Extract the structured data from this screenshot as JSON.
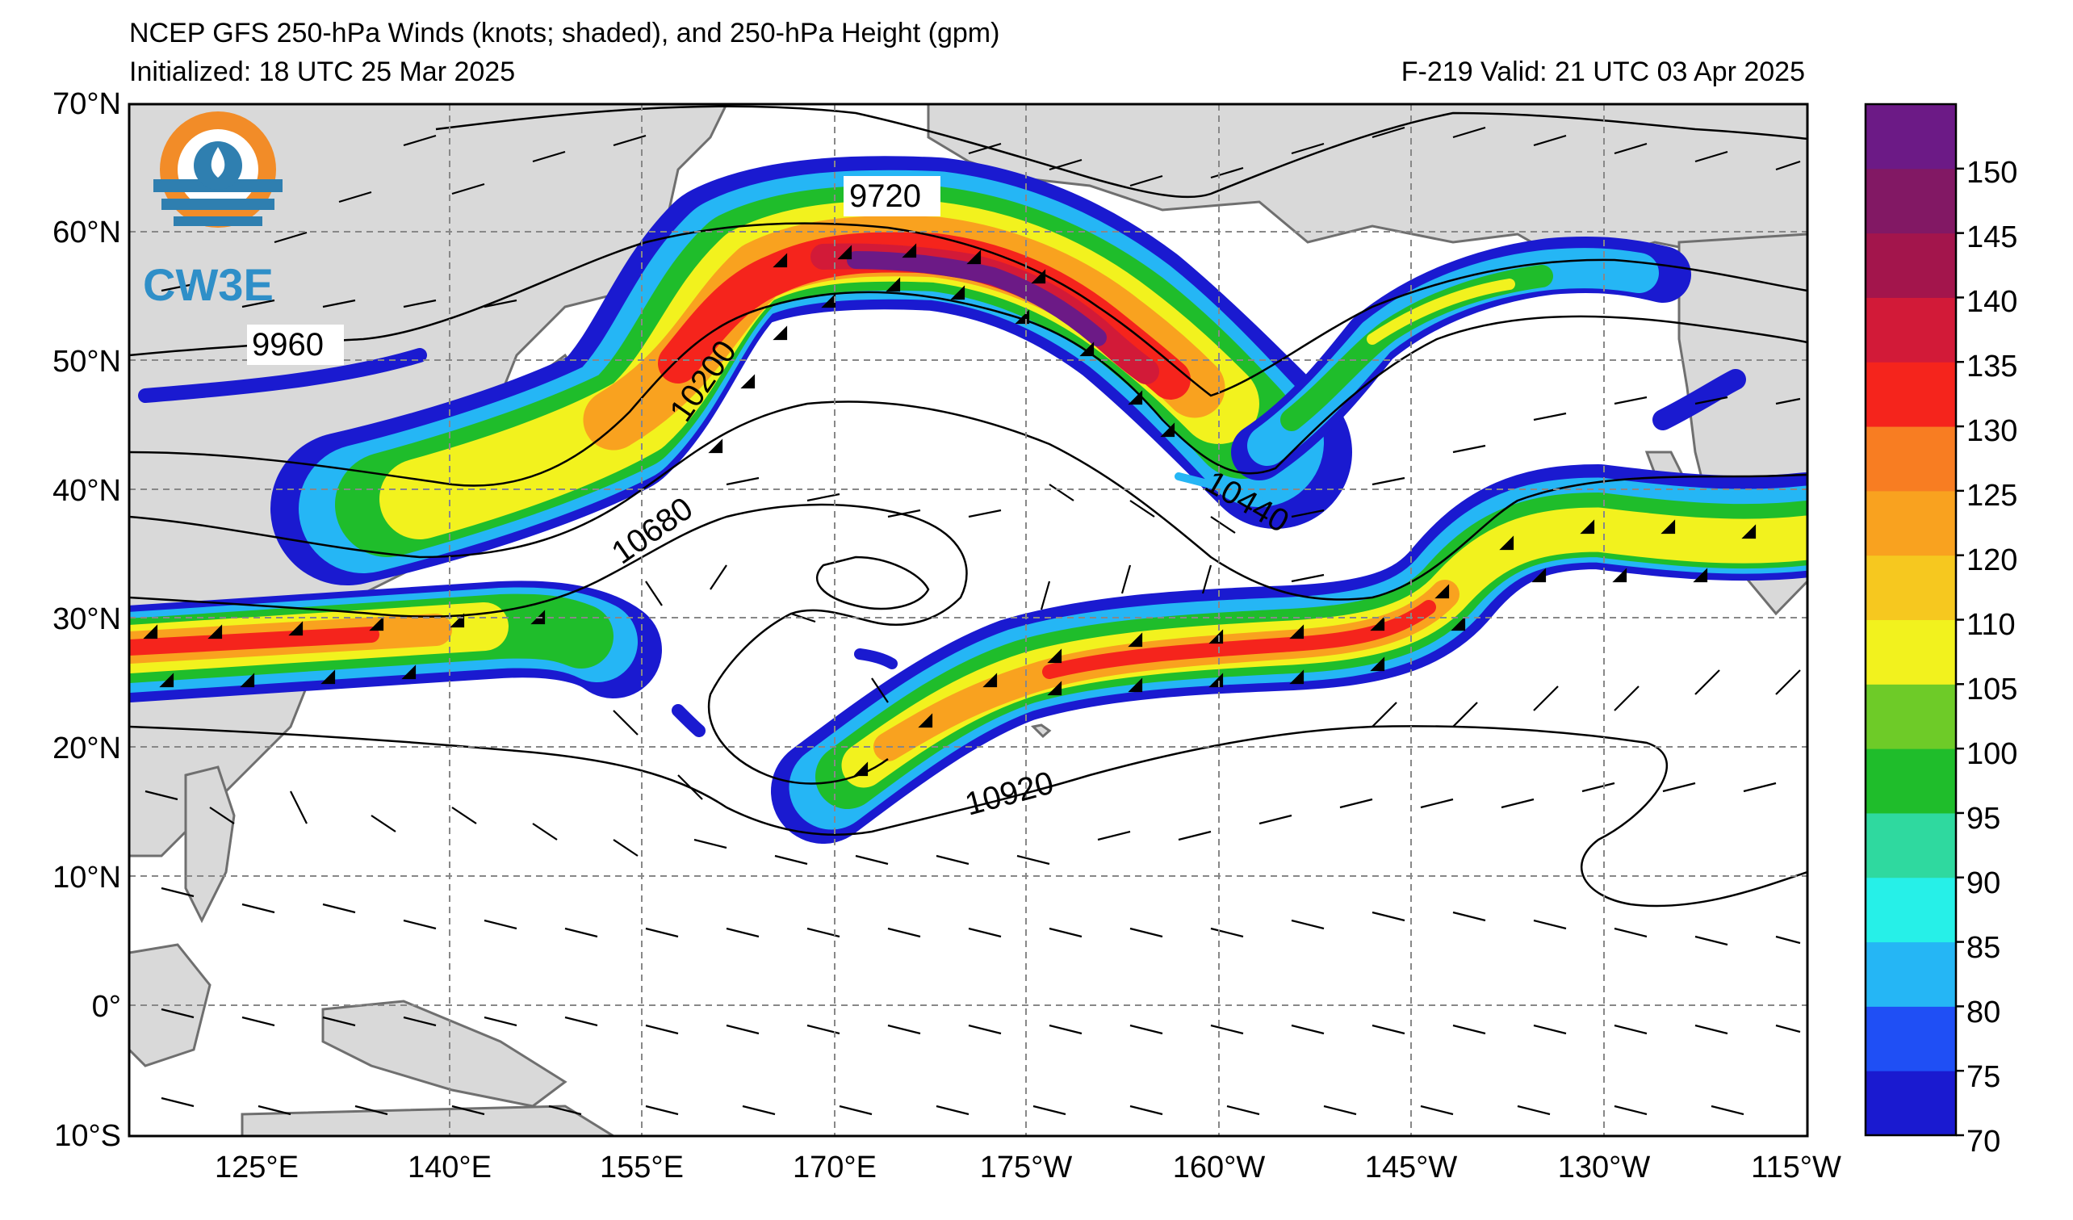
{
  "header": {
    "title": "NCEP GFS 250-hPa Winds (knots; shaded), and 250-hPa Height (gpm)",
    "initialized": "Initialized: 18 UTC 25 Mar 2025",
    "valid": "F-219  Valid: 21 UTC 03 Apr 2025"
  },
  "logo": {
    "text": "CW3E"
  },
  "map": {
    "lat_labels": [
      "70°N",
      "60°N",
      "50°N",
      "40°N",
      "30°N",
      "20°N",
      "10°N",
      "0°",
      "10°S"
    ],
    "lon_labels": [
      "125°E",
      "140°E",
      "155°E",
      "170°E",
      "175°W",
      "160°W",
      "145°W",
      "130°W",
      "115°W"
    ],
    "contour_labels": [
      "9720",
      "9960",
      "10200",
      "10680",
      "10440",
      "10920"
    ]
  },
  "colorbar": {
    "tick_labels": [
      "150",
      "145",
      "140",
      "135",
      "130",
      "125",
      "120",
      "110",
      "105",
      "100",
      "95",
      "90",
      "85",
      "80",
      "75",
      "70"
    ],
    "colors": [
      "#1a1ad0",
      "#1f4ff5",
      "#25b6f5",
      "#26f0e8",
      "#2fd99f",
      "#1fbd2b",
      "#6ecb28",
      "#f2f21e",
      "#f6c81f",
      "#f9a21f",
      "#f87d22",
      "#f5241c",
      "#d21a38",
      "#a3154c",
      "#821864",
      "#6c1a86"
    ]
  },
  "colors": {
    "land": "#d9d9d9",
    "coast": "#6f6f6f",
    "grid": "#888888"
  }
}
